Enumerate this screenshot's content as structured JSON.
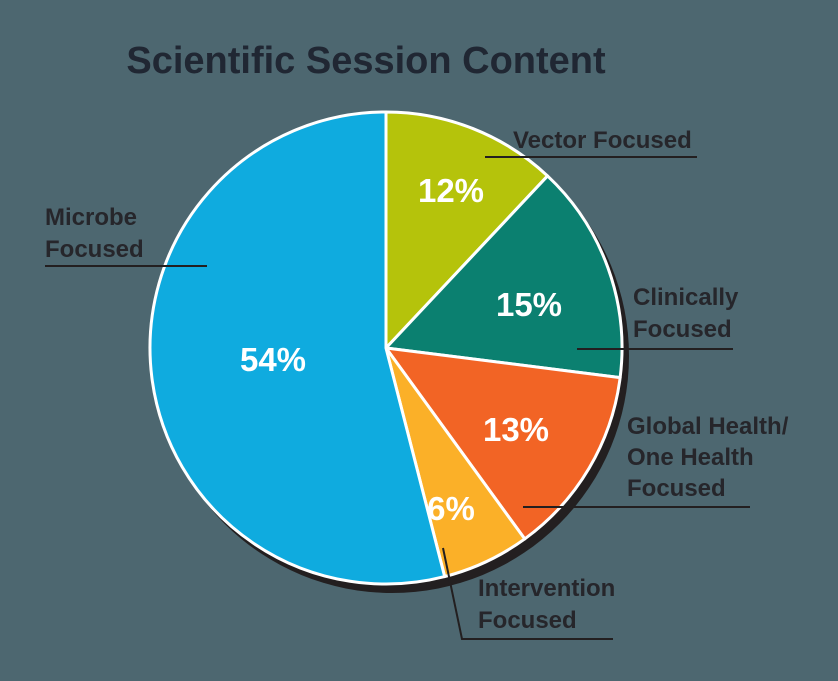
{
  "title": "Scientific Session Content",
  "chart_data": {
    "type": "pie",
    "title": "Scientific Session Content",
    "start_angle_deg": 0,
    "direction": "clockwise",
    "legend_position": "callout-labels-around-pie",
    "slices": [
      {
        "key": "vector",
        "label": "Vector Focused",
        "value": 12,
        "pct_label": "12%",
        "color": "#b5c30b"
      },
      {
        "key": "clinically",
        "label": "Clinically Focused",
        "value": 15,
        "pct_label": "15%",
        "color": "#0b8070"
      },
      {
        "key": "global",
        "label": "Global Health/ One Health Focused",
        "value": 13,
        "pct_label": "13%",
        "color": "#f26425"
      },
      {
        "key": "intervention",
        "label": "Intervention Focused",
        "value": 6,
        "pct_label": "6%",
        "color": "#fbb028"
      },
      {
        "key": "microbe",
        "label": "Microbe Focused",
        "value": 54,
        "pct_label": "54%",
        "color": "#0fabdf"
      }
    ]
  },
  "callouts": {
    "vector": {
      "lines": {
        "0": "Vector Focused"
      }
    },
    "clinically": {
      "lines": {
        "0": "Clinically",
        "1": "Focused"
      }
    },
    "global": {
      "lines": {
        "0": "Global Health/",
        "1": "One Health",
        "2": "Focused"
      }
    },
    "intervention": {
      "lines": {
        "0": "Intervention",
        "1": "Focused"
      }
    },
    "microbe": {
      "lines": {
        "0": "Microbe",
        "1": "Focused"
      }
    }
  },
  "colors": {
    "background": "#4d6770",
    "title_text": "#202733",
    "label_text": "#26262b",
    "pct_text": "#ffffff",
    "leader_line": "#231f20",
    "slice_outline": "#ffffff",
    "shadow": "#231f20"
  }
}
